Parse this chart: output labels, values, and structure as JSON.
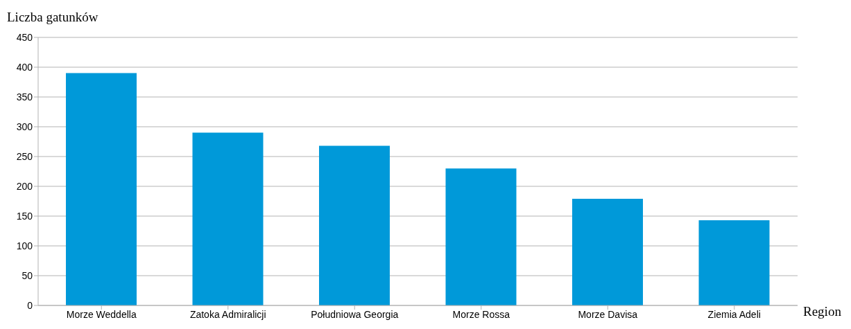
{
  "chart_data": {
    "type": "bar",
    "ylabel": "Liczba gatunków",
    "xlabel": "Region",
    "categories": [
      "Morze Weddella",
      "Zatoka Admiralicji",
      "Południowa Georgia",
      "Morze Rossa",
      "Morze Davisa",
      "Ziemia Adeli"
    ],
    "values": [
      390,
      290,
      268,
      230,
      179,
      143
    ],
    "color": "#0099d9",
    "ylim": [
      0,
      450
    ],
    "yticks": [
      0,
      50,
      100,
      150,
      200,
      250,
      300,
      350,
      400,
      450
    ],
    "grid": "y"
  }
}
